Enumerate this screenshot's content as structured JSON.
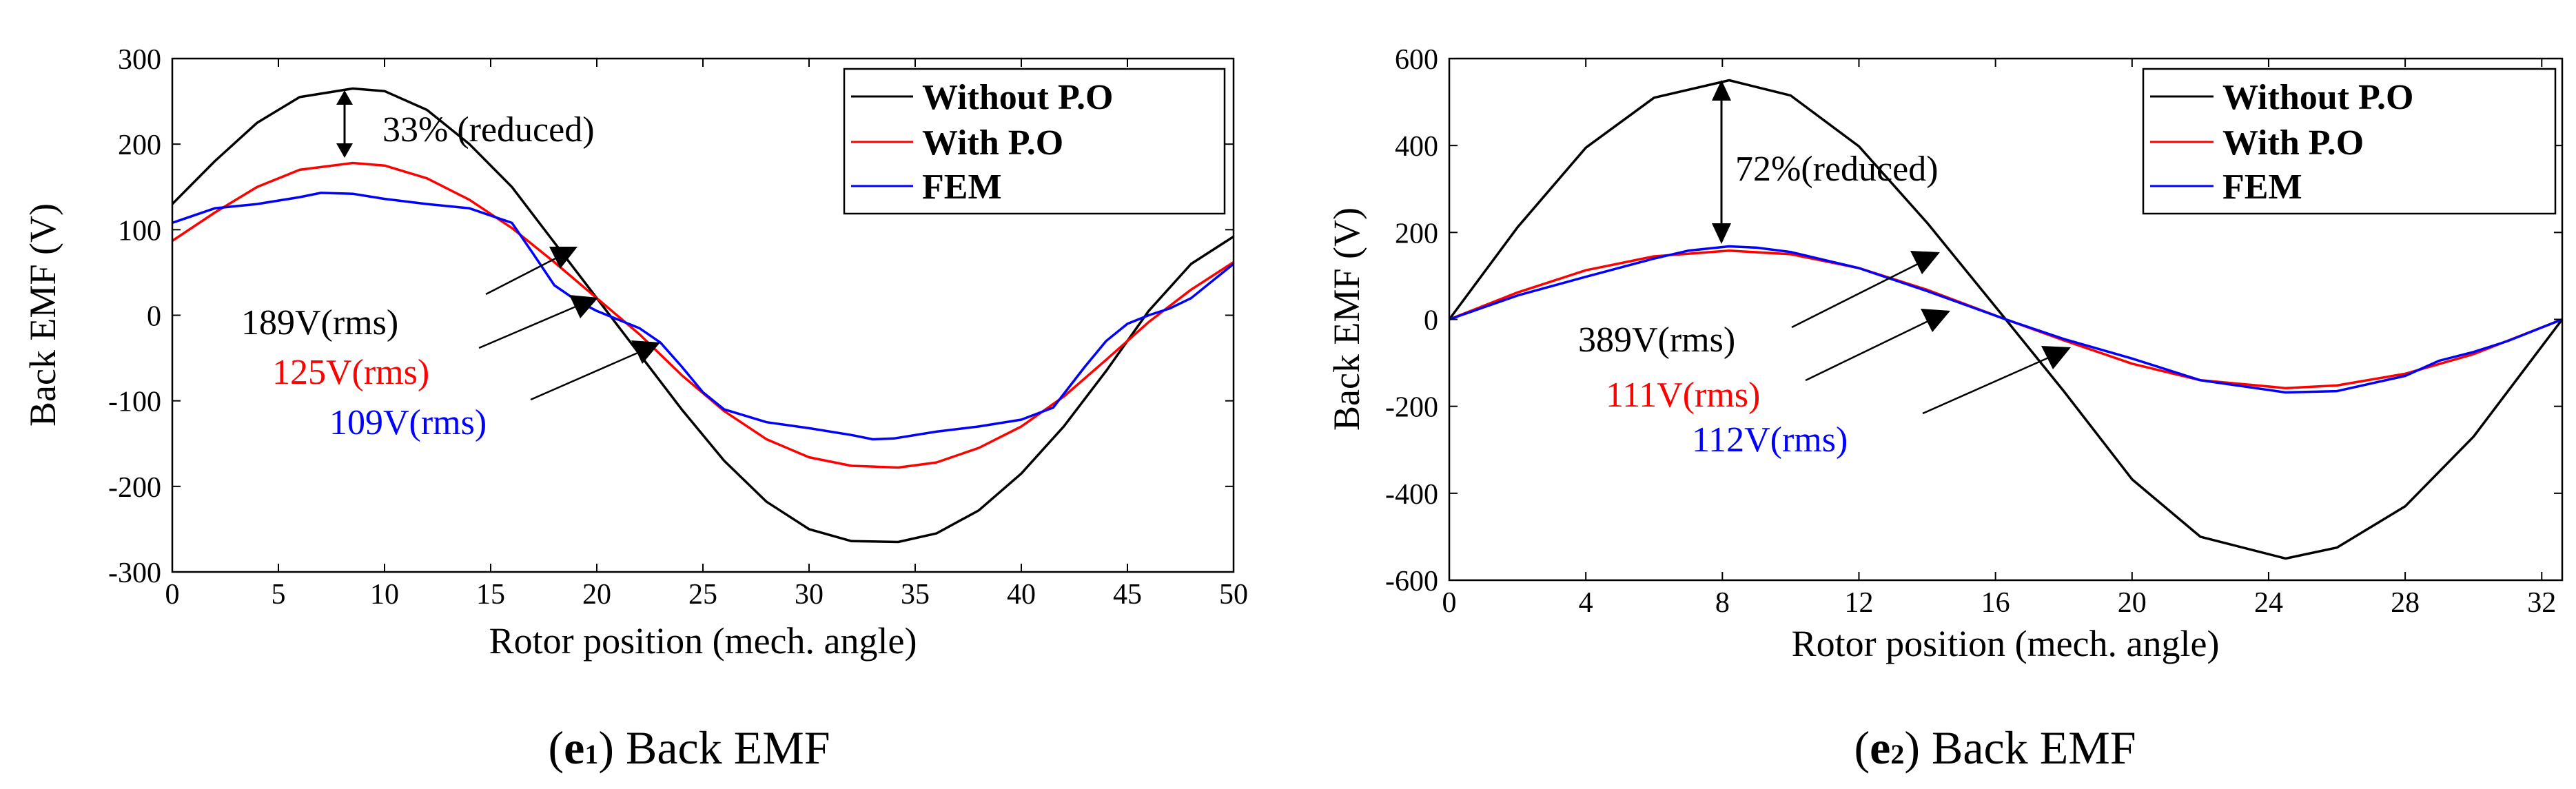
{
  "chart_data": [
    {
      "type": "line",
      "caption": {
        "letter": "e",
        "subscript": "1",
        "text": " Back EMF"
      },
      "xlabel": "Rotor position (mech. angle)",
      "ylabel": "Back EMF (V)",
      "xlim": [
        0,
        50
      ],
      "ylim": [
        -300,
        300
      ],
      "xticks": [
        0,
        5,
        10,
        15,
        20,
        25,
        30,
        35,
        40,
        45,
        50
      ],
      "yticks": [
        -300,
        -200,
        -100,
        0,
        100,
        200,
        300
      ],
      "legend_position": "top-right",
      "series": [
        {
          "name": "Without P.O",
          "color": "#000000",
          "x": [
            0,
            2,
            4,
            6,
            8.5,
            10,
            12,
            14,
            16,
            18,
            20,
            22,
            24,
            26,
            28,
            30,
            32,
            34.2,
            36,
            38,
            40,
            42,
            44,
            46,
            48,
            50
          ],
          "y": [
            130,
            180,
            225,
            255,
            265,
            262,
            240,
            200,
            150,
            85,
            20,
            -45,
            -110,
            -170,
            -218,
            -250,
            -264,
            -265,
            -255,
            -228,
            -185,
            -130,
            -65,
            5,
            60,
            92
          ]
        },
        {
          "name": "With P.O",
          "color": "#ff0000",
          "x": [
            0,
            2,
            4,
            6,
            8.5,
            10,
            12,
            14,
            16,
            18,
            20,
            22,
            24,
            26,
            28,
            30,
            32,
            34.2,
            36,
            38,
            40,
            42,
            44,
            46,
            48,
            50
          ],
          "y": [
            87,
            120,
            150,
            170,
            178,
            175,
            160,
            135,
            102,
            62,
            20,
            -22,
            -70,
            -112,
            -145,
            -166,
            -176,
            -178,
            -172,
            -155,
            -130,
            -95,
            -52,
            -8,
            30,
            62
          ]
        },
        {
          "name": "FEM",
          "color": "#0000ff",
          "x": [
            0,
            2,
            4,
            6,
            7,
            8.5,
            10,
            12,
            14,
            16,
            17,
            18,
            19,
            20,
            21,
            22,
            23,
            24,
            25,
            26,
            28,
            30,
            32,
            33,
            34,
            36,
            38,
            40,
            41.5,
            43,
            44,
            45,
            46,
            47,
            48,
            49,
            50
          ],
          "y": [
            108,
            125,
            130,
            138,
            143,
            142,
            136,
            130,
            125,
            108,
            72,
            35,
            18,
            5,
            -5,
            -15,
            -32,
            -60,
            -90,
            -110,
            -125,
            -132,
            -140,
            -145,
            -144,
            -136,
            -130,
            -122,
            -108,
            -60,
            -30,
            -10,
            0,
            8,
            20,
            40,
            60
          ]
        }
      ],
      "annotations": [
        {
          "text": "33% (reduced)",
          "color": "#000000"
        },
        {
          "text": "189V(rms)",
          "color": "#000000"
        },
        {
          "text": "125V(rms)",
          "color": "#ff0000"
        },
        {
          "text": "109V(rms)",
          "color": "#0000ff"
        }
      ]
    },
    {
      "type": "line",
      "caption": {
        "letter": "e",
        "subscript": "2",
        "text": " Back EMF"
      },
      "xlabel": "Rotor position (mech. angle)",
      "ylabel": "Back EMF (V)",
      "xlim": [
        0,
        32.6
      ],
      "ylim": [
        -600,
        600
      ],
      "xticks": [
        0,
        4,
        8,
        12,
        16,
        20,
        24,
        28,
        32
      ],
      "yticks": [
        -600,
        -400,
        -200,
        0,
        200,
        400,
        600
      ],
      "legend_position": "top-right",
      "series": [
        {
          "name": "Without P.O",
          "color": "#000000",
          "x": [
            0,
            2,
            4,
            6,
            8.2,
            10,
            12,
            14,
            16.3,
            18,
            20,
            22,
            24.5,
            26,
            28,
            30,
            32.6
          ],
          "y": [
            0,
            212,
            395,
            510,
            550,
            515,
            398,
            222,
            0,
            -165,
            -368,
            -500,
            -550,
            -525,
            -430,
            -270,
            0
          ]
        },
        {
          "name": "With P.O",
          "color": "#ff0000",
          "x": [
            0,
            2,
            4,
            6,
            8.2,
            10,
            12,
            14,
            16.3,
            18,
            20,
            22,
            24.5,
            26,
            28,
            30,
            32.6
          ],
          "y": [
            0,
            62,
            113,
            145,
            158,
            150,
            118,
            68,
            0,
            -48,
            -102,
            -140,
            -158,
            -152,
            -125,
            -80,
            0
          ]
        },
        {
          "name": "FEM",
          "color": "#0000ff",
          "x": [
            0,
            2,
            4,
            6,
            7,
            8.2,
            9,
            10,
            12,
            14,
            16.3,
            18,
            20,
            22,
            24.5,
            26,
            28,
            29,
            30,
            31,
            32.6
          ],
          "y": [
            0,
            55,
            98,
            140,
            158,
            168,
            165,
            155,
            118,
            65,
            0,
            -45,
            -90,
            -140,
            -168,
            -165,
            -130,
            -95,
            -75,
            -50,
            0
          ]
        }
      ],
      "annotations": [
        {
          "text": "72%(reduced)",
          "color": "#000000"
        },
        {
          "text": "389V(rms)",
          "color": "#000000"
        },
        {
          "text": "111V(rms)",
          "color": "#ff0000"
        },
        {
          "text": "112V(rms)",
          "color": "#0000ff"
        }
      ]
    }
  ]
}
